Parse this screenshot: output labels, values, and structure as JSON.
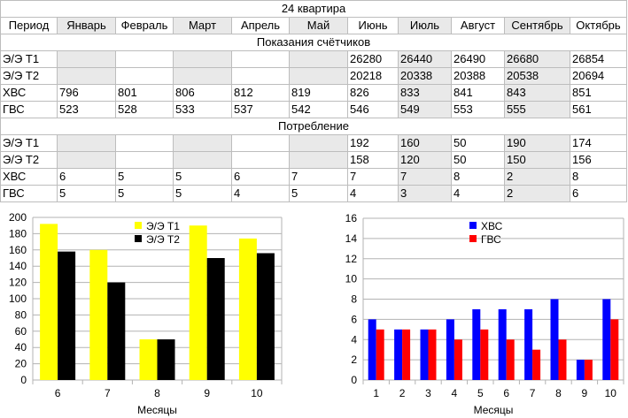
{
  "table": {
    "title": "24 квартира",
    "header": [
      "Период",
      "Январь",
      "Февраль",
      "Март",
      "Апрель",
      "Май",
      "Июнь",
      "Июль",
      "Август",
      "Сентябрь",
      "Октябрь"
    ],
    "section1_title": "Показания счётчиков",
    "section1_rows": [
      {
        "label": "Э/Э Т1",
        "cells": [
          "",
          "",
          "",
          "",
          "",
          "26280",
          "26440",
          "26490",
          "26680",
          "26854"
        ]
      },
      {
        "label": "Э/Э Т2",
        "cells": [
          "",
          "",
          "",
          "",
          "",
          "20218",
          "20338",
          "20388",
          "20538",
          "20694"
        ]
      },
      {
        "label": "ХВС",
        "cells": [
          "796",
          "801",
          "806",
          "812",
          "819",
          "826",
          "833",
          "841",
          "843",
          "851"
        ]
      },
      {
        "label": "ГВС",
        "cells": [
          "523",
          "528",
          "533",
          "537",
          "542",
          "546",
          "549",
          "553",
          "555",
          "561"
        ]
      }
    ],
    "section2_title": "Потребление",
    "section2_rows": [
      {
        "label": "Э/Э Т1",
        "cells": [
          "",
          "",
          "",
          "",
          "",
          "192",
          "160",
          "50",
          "190",
          "174"
        ]
      },
      {
        "label": "Э/Э Т2",
        "cells": [
          "",
          "",
          "",
          "",
          "",
          "158",
          "120",
          "50",
          "150",
          "156"
        ]
      },
      {
        "label": "ХВС",
        "cells": [
          "6",
          "5",
          "5",
          "6",
          "7",
          "7",
          "7",
          "8",
          "2",
          "8"
        ]
      },
      {
        "label": "ГВС",
        "cells": [
          "5",
          "5",
          "5",
          "4",
          "5",
          "4",
          "3",
          "4",
          "2",
          "6"
        ]
      }
    ]
  },
  "chart_data": [
    {
      "type": "bar",
      "categories": [
        "6",
        "7",
        "8",
        "9",
        "10"
      ],
      "series": [
        {
          "name": "Э/Э Т1",
          "color": "#ffff00",
          "values": [
            192,
            160,
            50,
            190,
            174
          ]
        },
        {
          "name": "Э/Э Т2",
          "color": "#000000",
          "values": [
            158,
            120,
            50,
            150,
            156
          ]
        }
      ],
      "xlabel": "Месяцы",
      "ylabel": "",
      "ylim": [
        0,
        200
      ],
      "yticks": [
        "0",
        "20",
        "40",
        "60",
        "80",
        "100",
        "120",
        "140",
        "160",
        "180",
        "200"
      ],
      "grid": true,
      "legend_position": "top-right"
    },
    {
      "type": "bar",
      "categories": [
        "1",
        "2",
        "3",
        "4",
        "5",
        "6",
        "7",
        "8",
        "9",
        "10"
      ],
      "series": [
        {
          "name": "ХВС",
          "color": "#0000ff",
          "values": [
            6,
            5,
            5,
            6,
            7,
            7,
            7,
            8,
            2,
            8
          ]
        },
        {
          "name": "ГВС",
          "color": "#ff0000",
          "values": [
            5,
            5,
            5,
            4,
            5,
            4,
            3,
            4,
            2,
            6
          ]
        }
      ],
      "xlabel": "Месяцы",
      "ylabel": "",
      "ylim": [
        0,
        16
      ],
      "yticks": [
        "0",
        "2",
        "4",
        "6",
        "8",
        "10",
        "12",
        "14",
        "16"
      ],
      "grid": true,
      "legend_position": "top-center"
    }
  ]
}
